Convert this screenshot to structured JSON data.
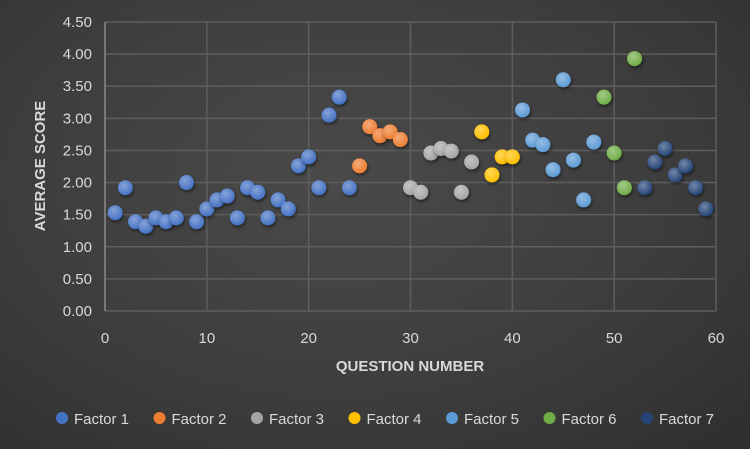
{
  "chart_data": {
    "type": "scatter",
    "title": "",
    "xlabel": "QUESTION NUMBER",
    "ylabel": "AVERAGE SCORE",
    "xlim": [
      0,
      60
    ],
    "ylim": [
      0,
      4.5
    ],
    "xticks": [
      "0",
      "10",
      "20",
      "30",
      "40",
      "50",
      "60"
    ],
    "yticks": [
      "0.00",
      "0.50",
      "1.00",
      "1.50",
      "2.00",
      "2.50",
      "3.00",
      "3.50",
      "4.00",
      "4.50"
    ],
    "grid": true,
    "legend_position": "bottom",
    "series": [
      {
        "name": "Factor 1",
        "color": "#4472C4",
        "x": [
          1,
          2,
          3,
          4,
          5,
          6,
          7,
          8,
          9,
          10,
          11,
          12,
          13,
          14,
          15,
          16,
          17,
          18,
          19,
          20,
          21,
          22,
          23,
          24
        ],
        "y": [
          1.53,
          1.92,
          1.39,
          1.32,
          1.45,
          1.39,
          1.45,
          2.0,
          1.39,
          1.59,
          1.73,
          1.79,
          1.45,
          1.92,
          1.85,
          1.45,
          1.73,
          1.59,
          2.26,
          2.4,
          1.92,
          3.05,
          3.33,
          1.92
        ]
      },
      {
        "name": "Factor 2",
        "color": "#ED7D31",
        "x": [
          25,
          26,
          27,
          28,
          29
        ],
        "y": [
          2.26,
          2.87,
          2.73,
          2.79,
          2.67
        ]
      },
      {
        "name": "Factor 3",
        "color": "#A5A5A5",
        "x": [
          30,
          31,
          32,
          33,
          34,
          35,
          36
        ],
        "y": [
          1.92,
          1.85,
          2.46,
          2.53,
          2.49,
          1.85,
          2.32
        ]
      },
      {
        "name": "Factor 4",
        "color": "#FFC000",
        "x": [
          37,
          38,
          39,
          40
        ],
        "y": [
          2.79,
          2.12,
          2.4,
          2.4
        ]
      },
      {
        "name": "Factor 5",
        "color": "#5B9BD5",
        "x": [
          41,
          42,
          43,
          44,
          45,
          46,
          47,
          48
        ],
        "y": [
          3.13,
          2.66,
          2.59,
          2.2,
          3.6,
          2.35,
          1.73,
          2.63
        ]
      },
      {
        "name": "Factor 6",
        "color": "#70AD47",
        "x": [
          49,
          50,
          51,
          52
        ],
        "y": [
          3.33,
          2.46,
          1.92,
          3.93
        ]
      },
      {
        "name": "Factor 7",
        "color": "#264478",
        "x": [
          53,
          54,
          55,
          56,
          57,
          58,
          59
        ],
        "y": [
          1.92,
          2.32,
          2.53,
          2.12,
          2.26,
          1.92,
          1.59
        ]
      }
    ]
  }
}
